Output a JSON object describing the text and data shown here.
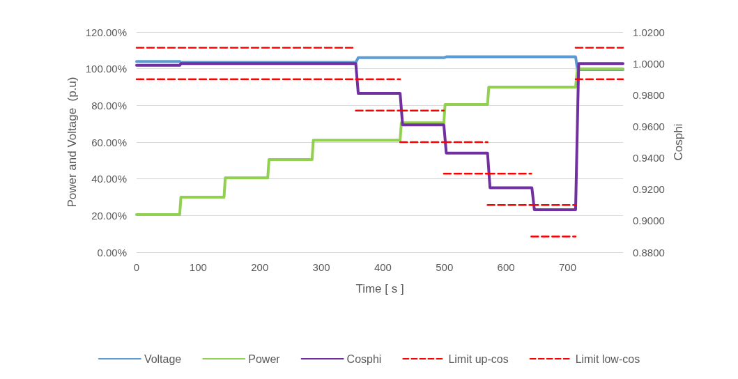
{
  "chart_data": {
    "type": "line",
    "xlabel": "Time [ s ]",
    "ylabel": "Power and Voltage  (p.u)",
    "y2label": "Cosphi",
    "xlim": [
      0,
      790
    ],
    "xticks": [
      0,
      100,
      200,
      300,
      400,
      500,
      600,
      700
    ],
    "ylim": [
      0,
      120
    ],
    "yticks": [
      {
        "value": 0,
        "label": "0.00%"
      },
      {
        "value": 20,
        "label": "20.00%"
      },
      {
        "value": 40,
        "label": "40.00%"
      },
      {
        "value": 60,
        "label": "60.00%"
      },
      {
        "value": 80,
        "label": "80.00%"
      },
      {
        "value": 100,
        "label": "100.00%"
      },
      {
        "value": 120,
        "label": "120.00%"
      }
    ],
    "y2lim": [
      0.88,
      1.02
    ],
    "y2ticks": [
      {
        "value": 0.88,
        "label": "0.8800"
      },
      {
        "value": 0.9,
        "label": "0.9000"
      },
      {
        "value": 0.92,
        "label": "0.9200"
      },
      {
        "value": 0.94,
        "label": "0.9400"
      },
      {
        "value": 0.96,
        "label": "0.9600"
      },
      {
        "value": 0.98,
        "label": "0.9800"
      },
      {
        "value": 1.0,
        "label": "1.0000"
      },
      {
        "value": 1.02,
        "label": "1.0200"
      }
    ],
    "grid": "y",
    "legend": "bottom",
    "marker": "none",
    "series": [
      {
        "name": "Voltage",
        "color": "#5b9bd5",
        "line_style": "solid",
        "x": [
          0,
          70,
          72,
          356,
          360,
          499,
          503,
          713,
          716,
          790
        ],
        "values": [
          104,
          104,
          103.5,
          103.5,
          106,
          106,
          106.5,
          106.5,
          99.5,
          99.5
        ]
      },
      {
        "name": "Power",
        "color": "#92d050",
        "line_style": "solid",
        "x": [
          0,
          70,
          72,
          142,
          144,
          213,
          215,
          285,
          287,
          428,
          430,
          499,
          501,
          570,
          572,
          713,
          716,
          790
        ],
        "values": [
          20.5,
          20.5,
          30,
          30,
          40.5,
          40.5,
          50.5,
          50.5,
          61,
          61,
          70.5,
          70.5,
          80.5,
          80.5,
          90,
          90,
          100,
          100
        ]
      },
      {
        "name": "Cosphi",
        "axis": "y2",
        "color": "#7030a0",
        "line_style": "solid",
        "x": [
          0,
          70,
          72,
          356,
          360,
          428,
          432,
          499,
          503,
          570,
          574,
          642,
          646,
          713,
          718,
          790
        ],
        "values": [
          0.9988,
          0.9988,
          1.0,
          1.0,
          0.981,
          0.981,
          0.961,
          0.961,
          0.943,
          0.943,
          0.921,
          0.921,
          0.907,
          0.907,
          1.0,
          1.0
        ]
      },
      {
        "name": "Limit up-cos",
        "axis": "y2",
        "color": "#ff0000",
        "line_style": "dashed",
        "x": [
          0,
          356,
          356,
          428,
          428,
          499,
          499,
          570,
          570,
          641,
          641,
          713,
          713,
          790
        ],
        "values": [
          1.01,
          1.01,
          0.99,
          0.99,
          0.97,
          0.97,
          0.95,
          0.95,
          0.93,
          0.93,
          0.91,
          0.91,
          1.01,
          1.01
        ]
      },
      {
        "name": "Limit low-cos",
        "axis": "y2",
        "color": "#ff0000",
        "line_style": "dashed",
        "x": [
          0,
          356,
          356,
          428,
          428,
          499,
          499,
          570,
          570,
          641,
          641,
          713,
          713,
          790
        ],
        "values": [
          0.99,
          0.99,
          0.97,
          0.97,
          0.95,
          0.95,
          0.93,
          0.93,
          0.91,
          0.91,
          0.89,
          0.89,
          0.99,
          0.99
        ]
      }
    ]
  }
}
